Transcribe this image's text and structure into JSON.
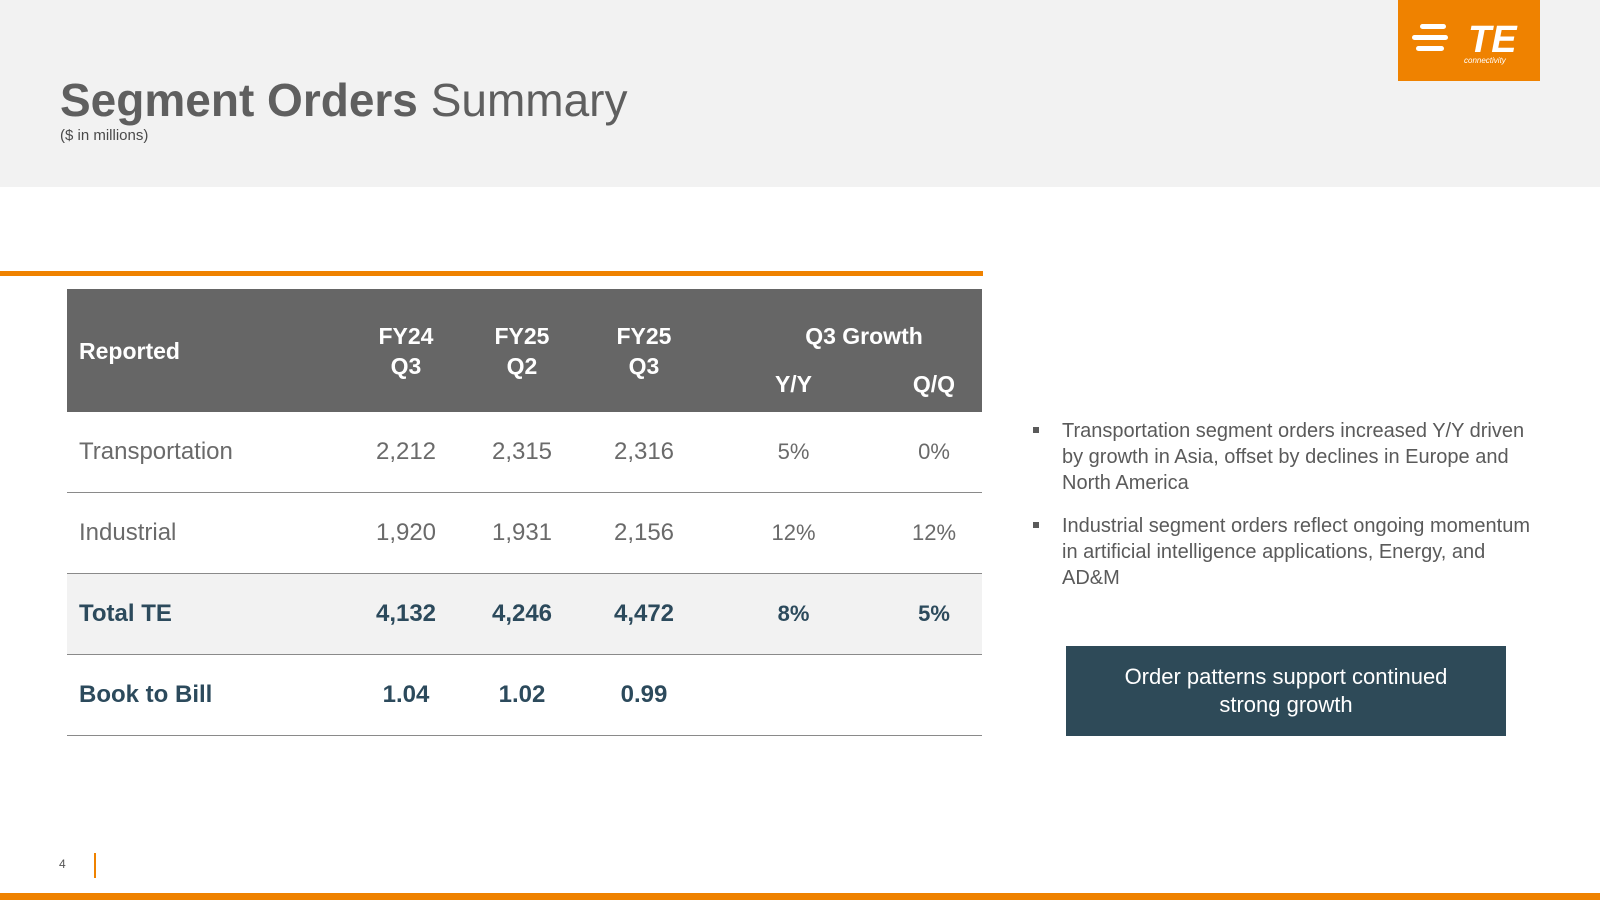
{
  "header": {
    "title_bold": "Segment Orders",
    "title_regular": "Summary",
    "subtitle": "($ in millions)"
  },
  "logo": {
    "text": "TE",
    "subtext": "connectivity",
    "color": "#ef8200"
  },
  "table": {
    "headers": {
      "reported": "Reported",
      "fy24_q3_line1": "FY24",
      "fy24_q3_line2": "Q3",
      "fy25_q2_line1": "FY25",
      "fy25_q2_line2": "Q2",
      "fy25_q3_line1": "FY25",
      "fy25_q3_line2": "Q3",
      "growth": "Q3 Growth",
      "yy": "Y/Y",
      "qq": "Q/Q"
    },
    "rows": [
      {
        "label": "Transportation",
        "fy24_q3": "2,212",
        "fy25_q2": "2,315",
        "fy25_q3": "2,316",
        "yy": "5%",
        "qq": "0%"
      },
      {
        "label": "Industrial",
        "fy24_q3": "1,920",
        "fy25_q2": "1,931",
        "fy25_q3": "2,156",
        "yy": "12%",
        "qq": "12%"
      },
      {
        "label": "Total TE",
        "fy24_q3": "4,132",
        "fy25_q2": "4,246",
        "fy25_q3": "4,472",
        "yy": "8%",
        "qq": "5%"
      },
      {
        "label": "Book to Bill",
        "fy24_q3": "1.04",
        "fy25_q2": "1.02",
        "fy25_q3": "0.99",
        "yy": "",
        "qq": ""
      }
    ]
  },
  "bullets": [
    "Transportation segment orders increased Y/Y driven by growth in Asia, offset by declines in Europe and North America",
    "Industrial segment orders reflect ongoing momentum in artificial intelligence applications, Energy, and AD&M"
  ],
  "callout": "Order patterns support continued strong growth",
  "footer": {
    "page_number": "4"
  },
  "colors": {
    "accent": "#ef8200",
    "header_gray": "#666666",
    "navy": "#2e4a58"
  }
}
